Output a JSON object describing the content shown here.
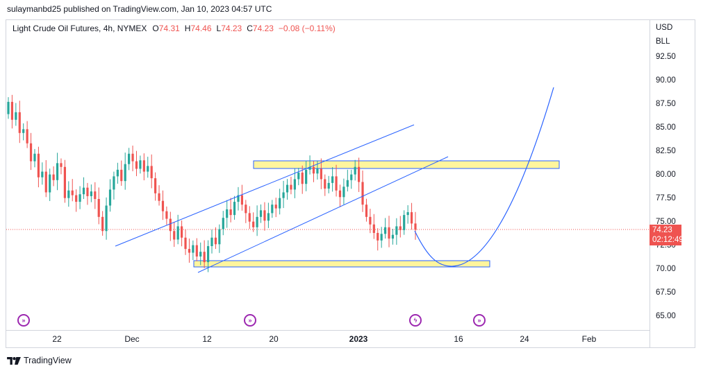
{
  "publisher": "sulaymanbd25 published on TradingView.com, Jan 10, 2023 04:57 UTC",
  "symbol": {
    "title": "Light Crude Oil Futures, 4h, NYMEX",
    "o_label": "O",
    "o_value": "74.31",
    "h_label": "H",
    "h_value": "74.46",
    "l_label": "L",
    "l_value": "74.23",
    "c_label": "C",
    "c_value": "74.23",
    "change": "−0.08 (−0.11%)"
  },
  "axis": {
    "currency": "USD",
    "unit": "BLL",
    "y_ticks": [
      "92.50",
      "90.00",
      "87.50",
      "85.00",
      "82.50",
      "80.00",
      "77.50",
      "75.00",
      "72.50",
      "70.00",
      "67.50",
      "65.00"
    ],
    "x_ticks": [
      "22",
      "Dec",
      "12",
      "20",
      "2023",
      "16",
      "24",
      "Feb"
    ]
  },
  "price_badge": {
    "price": "74.23",
    "countdown": "02:12:49"
  },
  "footer": {
    "brand": "TradingView"
  },
  "colors": {
    "up": "#26a69a",
    "down": "#ef5350",
    "line": "#2962ff",
    "zone_fill": "#fff59d",
    "event": "#9c27b0"
  },
  "events": [
    {
      "icon": "dividend-arrow-icon",
      "date": "Nov 16"
    },
    {
      "icon": "dividend-arrow-icon",
      "date": "Dec 18"
    },
    {
      "icon": "lightning-icon",
      "date": "Jan 10"
    },
    {
      "icon": "dividend-arrow-icon",
      "date": "Jan 18"
    }
  ],
  "chart_data": {
    "type": "candlestick",
    "timeframe": "4h",
    "ylim": [
      63.5,
      95
    ],
    "last_price": 74.23,
    "closes": [
      87.8,
      85.9,
      86.7,
      84.5,
      84.9,
      83.4,
      81.5,
      82.3,
      79.8,
      80.4,
      78.2,
      80.1,
      79.5,
      81.3,
      80.9,
      77.6,
      78.4,
      77.9,
      77.2,
      78.0,
      78.7,
      77.8,
      78.3,
      77.5,
      75.6,
      74.1,
      76.8,
      78.5,
      79.9,
      80.6,
      79.4,
      81.2,
      82.3,
      81.5,
      80.7,
      81.6,
      80.4,
      81.0,
      79.7,
      78.1,
      77.3,
      76.2,
      75.4,
      74.1,
      73.2,
      74.6,
      73.4,
      72.2,
      71.8,
      72.6,
      71.4,
      71.9,
      70.8,
      72.5,
      73.4,
      72.7,
      74.3,
      75.5,
      76.4,
      75.8,
      77.2,
      77.9,
      76.9,
      76.0,
      75.1,
      74.5,
      75.6,
      76.3,
      75.2,
      76.0,
      76.9,
      76.5,
      77.6,
      78.2,
      79.0,
      78.5,
      79.6,
      80.3,
      79.1,
      80.6,
      80.9,
      80.2,
      80.7,
      79.6,
      78.6,
      79.2,
      79.9,
      78.4,
      77.7,
      78.8,
      79.5,
      80.1,
      80.9,
      79.3,
      76.9,
      75.6,
      74.8,
      73.9,
      73.1,
      73.8,
      74.5,
      73.3,
      73.7,
      74.6,
      74.2,
      75.8,
      76.1,
      74.9,
      74.23
    ],
    "annotations": {
      "channel_upper": [
        [
          "Nov 25",
          72.5
        ],
        [
          "Jan 7",
          85.3
        ]
      ],
      "channel_lower": [
        [
          "Dec 10",
          69.8
        ],
        [
          "Jan 12",
          81.9
        ]
      ],
      "resistance_zone": {
        "from": "Dec 18",
        "to": "Jan 28",
        "low": 80.8,
        "high": 81.7
      },
      "support_zone": {
        "from": "Dec 9",
        "to": "Jan 19",
        "low": 70.3,
        "high": 71.0
      },
      "projection_curve": [
        [
          "Jan 10",
          74.2
        ],
        [
          "Jan 15",
          70.4
        ],
        [
          "Jan 19",
          72.7
        ],
        [
          "Jan 28",
          89.4
        ]
      ]
    }
  }
}
